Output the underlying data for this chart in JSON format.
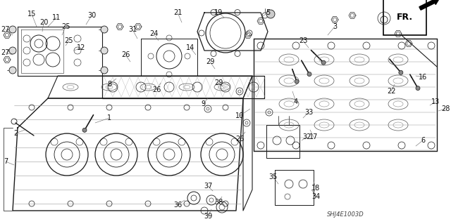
{
  "bg_color": "#f5f5f5",
  "fg_color": "#1a1a1a",
  "fig_width": 6.4,
  "fig_height": 3.19,
  "dpi": 100,
  "fr_label": "FR.",
  "diagram_code": "SHJ4E1003D",
  "label_fontsize": 7.0
}
